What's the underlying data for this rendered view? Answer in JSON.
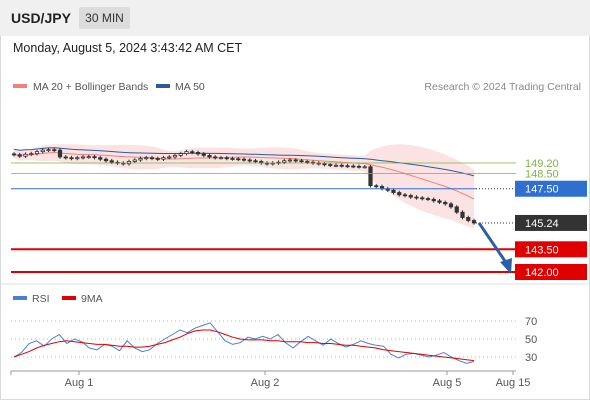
{
  "header": {
    "symbol": "USD/JPY",
    "interval": "30 MIN",
    "timestamp": "Monday, August 5, 2024 3:43:42 AM CET"
  },
  "chart_data": [
    {
      "type": "candlestick",
      "legend": [
        {
          "label": "MA 20 + Bollinger Bands",
          "color": "#f08080"
        },
        {
          "label": "MA 50",
          "color": "#2c5a9a"
        }
      ],
      "legend_placement": "top-left",
      "credit": "Research © 2024 Trading Central",
      "close_series": [
        149.75,
        149.65,
        149.78,
        149.82,
        149.95,
        150.05,
        150.08,
        150.05,
        149.6,
        149.55,
        149.5,
        149.55,
        149.6,
        149.62,
        149.55,
        149.45,
        149.35,
        149.25,
        149.2,
        149.15,
        149.3,
        149.4,
        149.5,
        149.55,
        149.5,
        149.45,
        149.55,
        149.6,
        149.7,
        149.82,
        149.95,
        149.9,
        149.8,
        149.7,
        149.6,
        149.55,
        149.55,
        149.5,
        149.48,
        149.45,
        149.4,
        149.35,
        149.3,
        149.2,
        149.15,
        149.2,
        149.25,
        149.35,
        149.4,
        149.35,
        149.3,
        149.25,
        149.2,
        149.15,
        149.1,
        149.05,
        149.05,
        149.02,
        149.0,
        148.98,
        148.95,
        148.95,
        147.7,
        147.65,
        147.5,
        147.4,
        147.25,
        147.1,
        147.05,
        146.95,
        146.9,
        146.85,
        146.8,
        146.7,
        146.6,
        146.5,
        146.3,
        145.95,
        145.6,
        145.4,
        145.24
      ],
      "horizontal_levels": [
        {
          "value": 149.2,
          "label": "149.20",
          "style": "resistance",
          "color": "#7cb342"
        },
        {
          "value": 148.5,
          "label": "148.50",
          "style": "resistance",
          "color": "#7cb342"
        },
        {
          "value": 147.5,
          "label": "147.50",
          "style": "pivot",
          "color": "#2f6fd0"
        },
        {
          "value": 145.24,
          "label": "145.24",
          "style": "last",
          "color": "#333333"
        },
        {
          "value": 143.5,
          "label": "143.50",
          "style": "support",
          "color": "#e00000"
        },
        {
          "value": 142.0,
          "label": "142.00",
          "style": "support",
          "color": "#e00000"
        }
      ],
      "forecast_arrow": {
        "from": 145.24,
        "to": 142.0,
        "direction": "down",
        "color": "#2b5fa8"
      },
      "x_ticks": [
        "Aug 1",
        "Aug 2",
        "Aug 5",
        "Aug 15"
      ]
    },
    {
      "type": "line",
      "legend": [
        {
          "label": "RSI",
          "color": "#4a7fd6"
        },
        {
          "label": "9MA",
          "color": "#e00000"
        }
      ],
      "y_ticks": [
        70,
        50,
        30
      ],
      "ylim": [
        15,
        80
      ],
      "rsi": [
        30,
        35,
        45,
        48,
        42,
        50,
        55,
        45,
        50,
        47,
        40,
        38,
        44,
        42,
        37,
        48,
        40,
        36,
        38,
        45,
        50,
        55,
        60,
        57,
        62,
        65,
        68,
        58,
        48,
        44,
        46,
        52,
        50,
        53,
        50,
        55,
        46,
        40,
        47,
        53,
        48,
        43,
        50,
        45,
        41,
        44,
        48,
        45,
        43,
        42,
        33,
        29,
        33,
        34,
        32,
        30,
        32,
        35,
        30,
        26,
        23,
        25
      ],
      "ma9": [
        30,
        33,
        36,
        40,
        43,
        45,
        47,
        48,
        47,
        46,
        45,
        44,
        44,
        43,
        42,
        42,
        41,
        41,
        42,
        44,
        46,
        49,
        52,
        56,
        59,
        60,
        60,
        58,
        55,
        52,
        50,
        49,
        49,
        49,
        48,
        48,
        47,
        47,
        47,
        46,
        46,
        45,
        45,
        44,
        43,
        43,
        42,
        41,
        40,
        38,
        37,
        36,
        35,
        34,
        33,
        32,
        31,
        30,
        29,
        28,
        27,
        26
      ]
    }
  ]
}
